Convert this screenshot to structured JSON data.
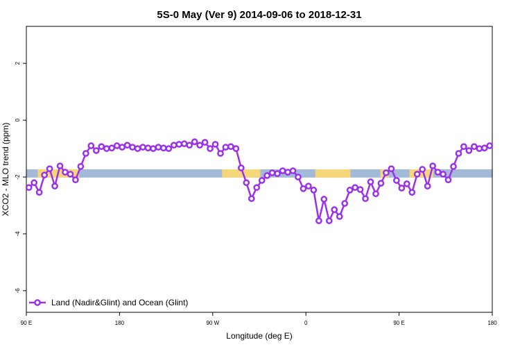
{
  "chart_data": {
    "type": "line",
    "title": "5S-0 May (Ver 9)   2014-09-06 to 2018-12-31",
    "x_label": "Longitude (deg E)",
    "y_label": "XCO2 - MLO trend (ppm)",
    "xlim": [
      90,
      540
    ],
    "ylim": [
      -6.76,
      3.3
    ],
    "xticks": [
      {
        "value": 90,
        "label": "90 E"
      },
      180,
      {
        "value": 270,
        "label": "90 W"
      },
      {
        "value": 360,
        "label": "0"
      },
      {
        "value": 450,
        "label": "90 E"
      },
      {
        "value": 540,
        "label": "180"
      }
    ],
    "yticks": [
      -6,
      -4,
      -2,
      0,
      2
    ],
    "legend": "bottom-left",
    "band": {
      "ylim": [
        -2.02,
        -1.73
      ],
      "color": "#a3b9d8",
      "land_color": "#f5d77a",
      "land_ranges": [
        [
          101,
          141
        ],
        [
          279,
          316
        ],
        [
          369,
          403
        ],
        [
          432,
          440
        ],
        [
          460,
          483
        ]
      ]
    },
    "series": [
      {
        "name": "Land (Nadir&Glint) and Ocean (Glint)",
        "color": "#9b30e8",
        "x": [
          92.5,
          97.5,
          102.5,
          107.5,
          112.5,
          117.5,
          122.5,
          127.5,
          132.5,
          137.5,
          142.5,
          147.5,
          152.5,
          157.5,
          162.5,
          167.5,
          172.5,
          177.5,
          182.5,
          187.5,
          192.5,
          197.5,
          202.5,
          207.5,
          212.5,
          217.5,
          222.5,
          227.5,
          232.5,
          237.5,
          242.5,
          247.5,
          252.5,
          257.5,
          262.5,
          267.5,
          272.5,
          277.5,
          282.5,
          287.5,
          292.5,
          297.5,
          302.5,
          307.5,
          312.5,
          317.5,
          322.5,
          327.5,
          332.5,
          337.5,
          342.5,
          347.5,
          352.5,
          357.5,
          362.5,
          367.5,
          372.5,
          377.5,
          382.5,
          387.5,
          392.5,
          397.5,
          402.5,
          407.5,
          412.5,
          417.5,
          422.5,
          427.5,
          432.5,
          437.5,
          442.5,
          447.5,
          452.5,
          457.5,
          462.5,
          467.5,
          472.5,
          477.5,
          482.5,
          487.5,
          492.5,
          497.5,
          502.5,
          507.5,
          512.5,
          517.5,
          522.5,
          527.5,
          532.5,
          537.5
        ],
        "values": [
          -2.37,
          -2.2,
          -2.54,
          -1.93,
          -1.71,
          -2.32,
          -1.61,
          -1.83,
          -1.9,
          -2.1,
          -1.63,
          -1.17,
          -0.9,
          -1.07,
          -0.93,
          -1.0,
          -0.98,
          -0.9,
          -0.95,
          -0.88,
          -0.95,
          -1.0,
          -0.95,
          -0.98,
          -1.0,
          -0.95,
          -0.98,
          -1.0,
          -0.88,
          -0.85,
          -0.83,
          -0.88,
          -0.76,
          -0.88,
          -0.78,
          -1.0,
          -0.85,
          -1.17,
          -0.95,
          -0.93,
          -1.0,
          -1.68,
          -2.2,
          -2.76,
          -2.37,
          -2.12,
          -1.95,
          -1.85,
          -1.88,
          -1.78,
          -1.83,
          -1.78,
          -2.0,
          -2.41,
          -2.32,
          -2.46,
          -3.54,
          -2.78,
          -3.54,
          -3.15,
          -3.39,
          -2.93,
          -2.46,
          -2.37,
          -2.44,
          -2.76,
          -2.17,
          -2.59,
          -2.22,
          -1.85,
          -1.71,
          -2.12,
          -2.39,
          -2.24,
          -2.54,
          -1.9,
          -1.73,
          -2.32,
          -1.61,
          -1.83,
          -1.9,
          -2.1,
          -1.63,
          -1.17,
          -0.93,
          -1.07,
          -0.93,
          -1.0,
          -0.98,
          -0.9
        ]
      }
    ]
  }
}
